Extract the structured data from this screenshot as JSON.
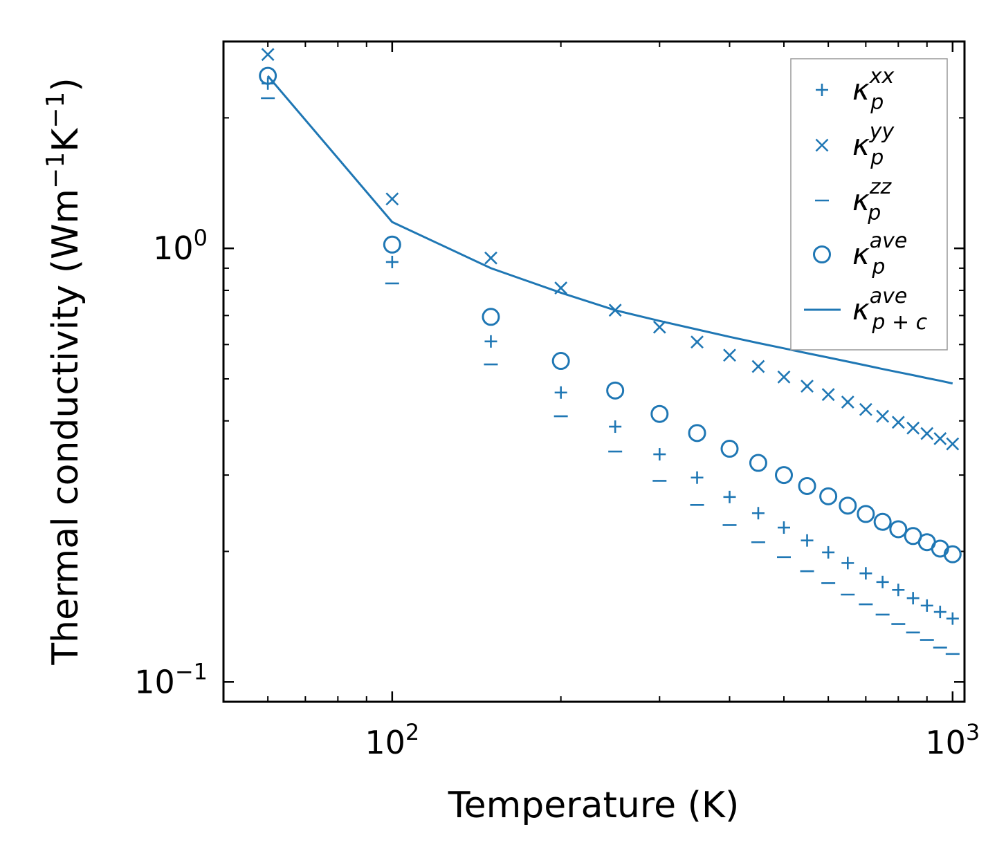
{
  "chart_data": {
    "type": "scatter",
    "title": "",
    "xlabel": "Temperature (K)",
    "ylabel": {
      "main": "Thermal conductivity (Wm",
      "exp1": "−1",
      "mid": "K",
      "exp2": "−1",
      "end": ")"
    },
    "xscale": "log",
    "yscale": "log",
    "xlim": [
      50,
      1050
    ],
    "ylim": [
      0.09,
      3.0
    ],
    "xticks": [
      {
        "value": 100,
        "base": "10",
        "exp": "2"
      },
      {
        "value": 1000,
        "base": "10",
        "exp": "3"
      }
    ],
    "yticks": [
      {
        "value": 1.0,
        "base": "10",
        "exp": "0"
      },
      {
        "value": 0.1,
        "base": "10",
        "exp": "−1"
      }
    ],
    "color": "#1f77b4",
    "legend_position": "top-right",
    "x": [
      60,
      100,
      150,
      200,
      250,
      300,
      350,
      400,
      450,
      500,
      550,
      600,
      650,
      700,
      750,
      800,
      850,
      900,
      950,
      1000
    ],
    "series": [
      {
        "name": "kxx",
        "label": "κ",
        "sup": "xx",
        "sub": "p",
        "marker": "plus",
        "values": [
          2.4,
          0.93,
          0.61,
          0.465,
          0.388,
          0.335,
          0.296,
          0.267,
          0.245,
          0.227,
          0.212,
          0.199,
          0.188,
          0.178,
          0.17,
          0.163,
          0.156,
          0.15,
          0.145,
          0.14
        ]
      },
      {
        "name": "kyy",
        "label": "κ",
        "sup": "yy",
        "sub": "p",
        "marker": "x",
        "values": [
          2.8,
          1.3,
          0.95,
          0.81,
          0.72,
          0.658,
          0.608,
          0.567,
          0.534,
          0.505,
          0.481,
          0.46,
          0.442,
          0.425,
          0.41,
          0.397,
          0.385,
          0.374,
          0.364,
          0.354
        ]
      },
      {
        "name": "kzz",
        "label": "κ",
        "sup": "zz",
        "sub": "p",
        "marker": "dash",
        "values": [
          2.22,
          0.83,
          0.54,
          0.41,
          0.34,
          0.291,
          0.256,
          0.23,
          0.21,
          0.194,
          0.18,
          0.169,
          0.159,
          0.151,
          0.143,
          0.136,
          0.13,
          0.125,
          0.12,
          0.116
        ]
      },
      {
        "name": "kave",
        "label": "κ",
        "sup": "ave",
        "sub": "p",
        "marker": "circle",
        "values": [
          2.5,
          1.02,
          0.695,
          0.55,
          0.47,
          0.415,
          0.375,
          0.345,
          0.32,
          0.3,
          0.283,
          0.268,
          0.255,
          0.244,
          0.234,
          0.225,
          0.217,
          0.21,
          0.203,
          0.197
        ]
      },
      {
        "name": "kpc",
        "label": "κ",
        "sup": "ave",
        "sub": "p + c",
        "marker": "line",
        "values": [
          2.5,
          1.15,
          0.9,
          0.79,
          0.72,
          0.68,
          0.65,
          0.625,
          0.605,
          0.588,
          0.573,
          0.56,
          0.548,
          0.537,
          0.527,
          0.518,
          0.51,
          0.502,
          0.495,
          0.488
        ]
      }
    ]
  }
}
